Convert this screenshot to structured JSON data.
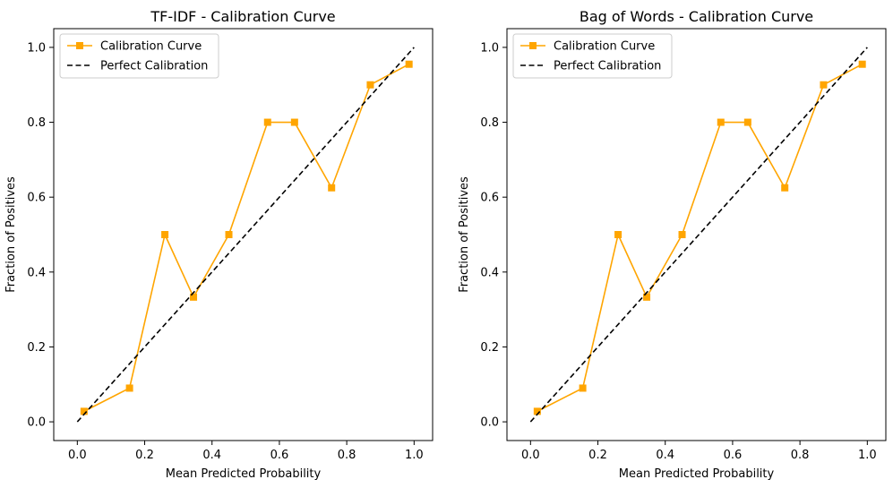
{
  "chart_data": [
    {
      "type": "line",
      "title": "TF-IDF - Calibration Curve",
      "xlabel": "Mean Predicted Probability",
      "ylabel": "Fraction of Positives",
      "xlim": [
        -0.07,
        1.055
      ],
      "ylim": [
        -0.05,
        1.05
      ],
      "xticks": [
        0.0,
        0.2,
        0.4,
        0.6,
        0.8,
        1.0
      ],
      "yticks": [
        0.0,
        0.2,
        0.4,
        0.6,
        0.8,
        1.0
      ],
      "xtick_labels": [
        "0.0",
        "0.2",
        "0.4",
        "0.6",
        "0.8",
        "1.0"
      ],
      "ytick_labels": [
        "0.0",
        "0.2",
        "0.4",
        "0.6",
        "0.8",
        "1.0"
      ],
      "grid": false,
      "legend_position": "top-left",
      "series": [
        {
          "name": "Calibration Curve",
          "color": "#FFA500",
          "marker": "square",
          "style": "solid",
          "x": [
            0.02,
            0.155,
            0.26,
            0.345,
            0.45,
            0.565,
            0.645,
            0.755,
            0.87,
            0.985
          ],
          "y": [
            0.028,
            0.09,
            0.5,
            0.333,
            0.5,
            0.8,
            0.8,
            0.625,
            0.9,
            0.955
          ]
        },
        {
          "name": "Perfect Calibration",
          "color": "#000000",
          "marker": "none",
          "style": "dashed",
          "x": [
            0,
            1
          ],
          "y": [
            0,
            1
          ]
        }
      ]
    },
    {
      "type": "line",
      "title": "Bag of Words - Calibration Curve",
      "xlabel": "Mean Predicted Probability",
      "ylabel": "Fraction of Positives",
      "xlim": [
        -0.07,
        1.055
      ],
      "ylim": [
        -0.05,
        1.05
      ],
      "xticks": [
        0.0,
        0.2,
        0.4,
        0.6,
        0.8,
        1.0
      ],
      "yticks": [
        0.0,
        0.2,
        0.4,
        0.6,
        0.8,
        1.0
      ],
      "xtick_labels": [
        "0.0",
        "0.2",
        "0.4",
        "0.6",
        "0.8",
        "1.0"
      ],
      "ytick_labels": [
        "0.0",
        "0.2",
        "0.4",
        "0.6",
        "0.8",
        "1.0"
      ],
      "grid": false,
      "legend_position": "top-left",
      "series": [
        {
          "name": "Calibration Curve",
          "color": "#FFA500",
          "marker": "square",
          "style": "solid",
          "x": [
            0.02,
            0.155,
            0.26,
            0.345,
            0.45,
            0.565,
            0.645,
            0.755,
            0.87,
            0.985
          ],
          "y": [
            0.028,
            0.09,
            0.5,
            0.333,
            0.5,
            0.8,
            0.8,
            0.625,
            0.9,
            0.955
          ]
        },
        {
          "name": "Perfect Calibration",
          "color": "#000000",
          "marker": "none",
          "style": "dashed",
          "x": [
            0,
            1
          ],
          "y": [
            0,
            1
          ]
        }
      ]
    }
  ]
}
